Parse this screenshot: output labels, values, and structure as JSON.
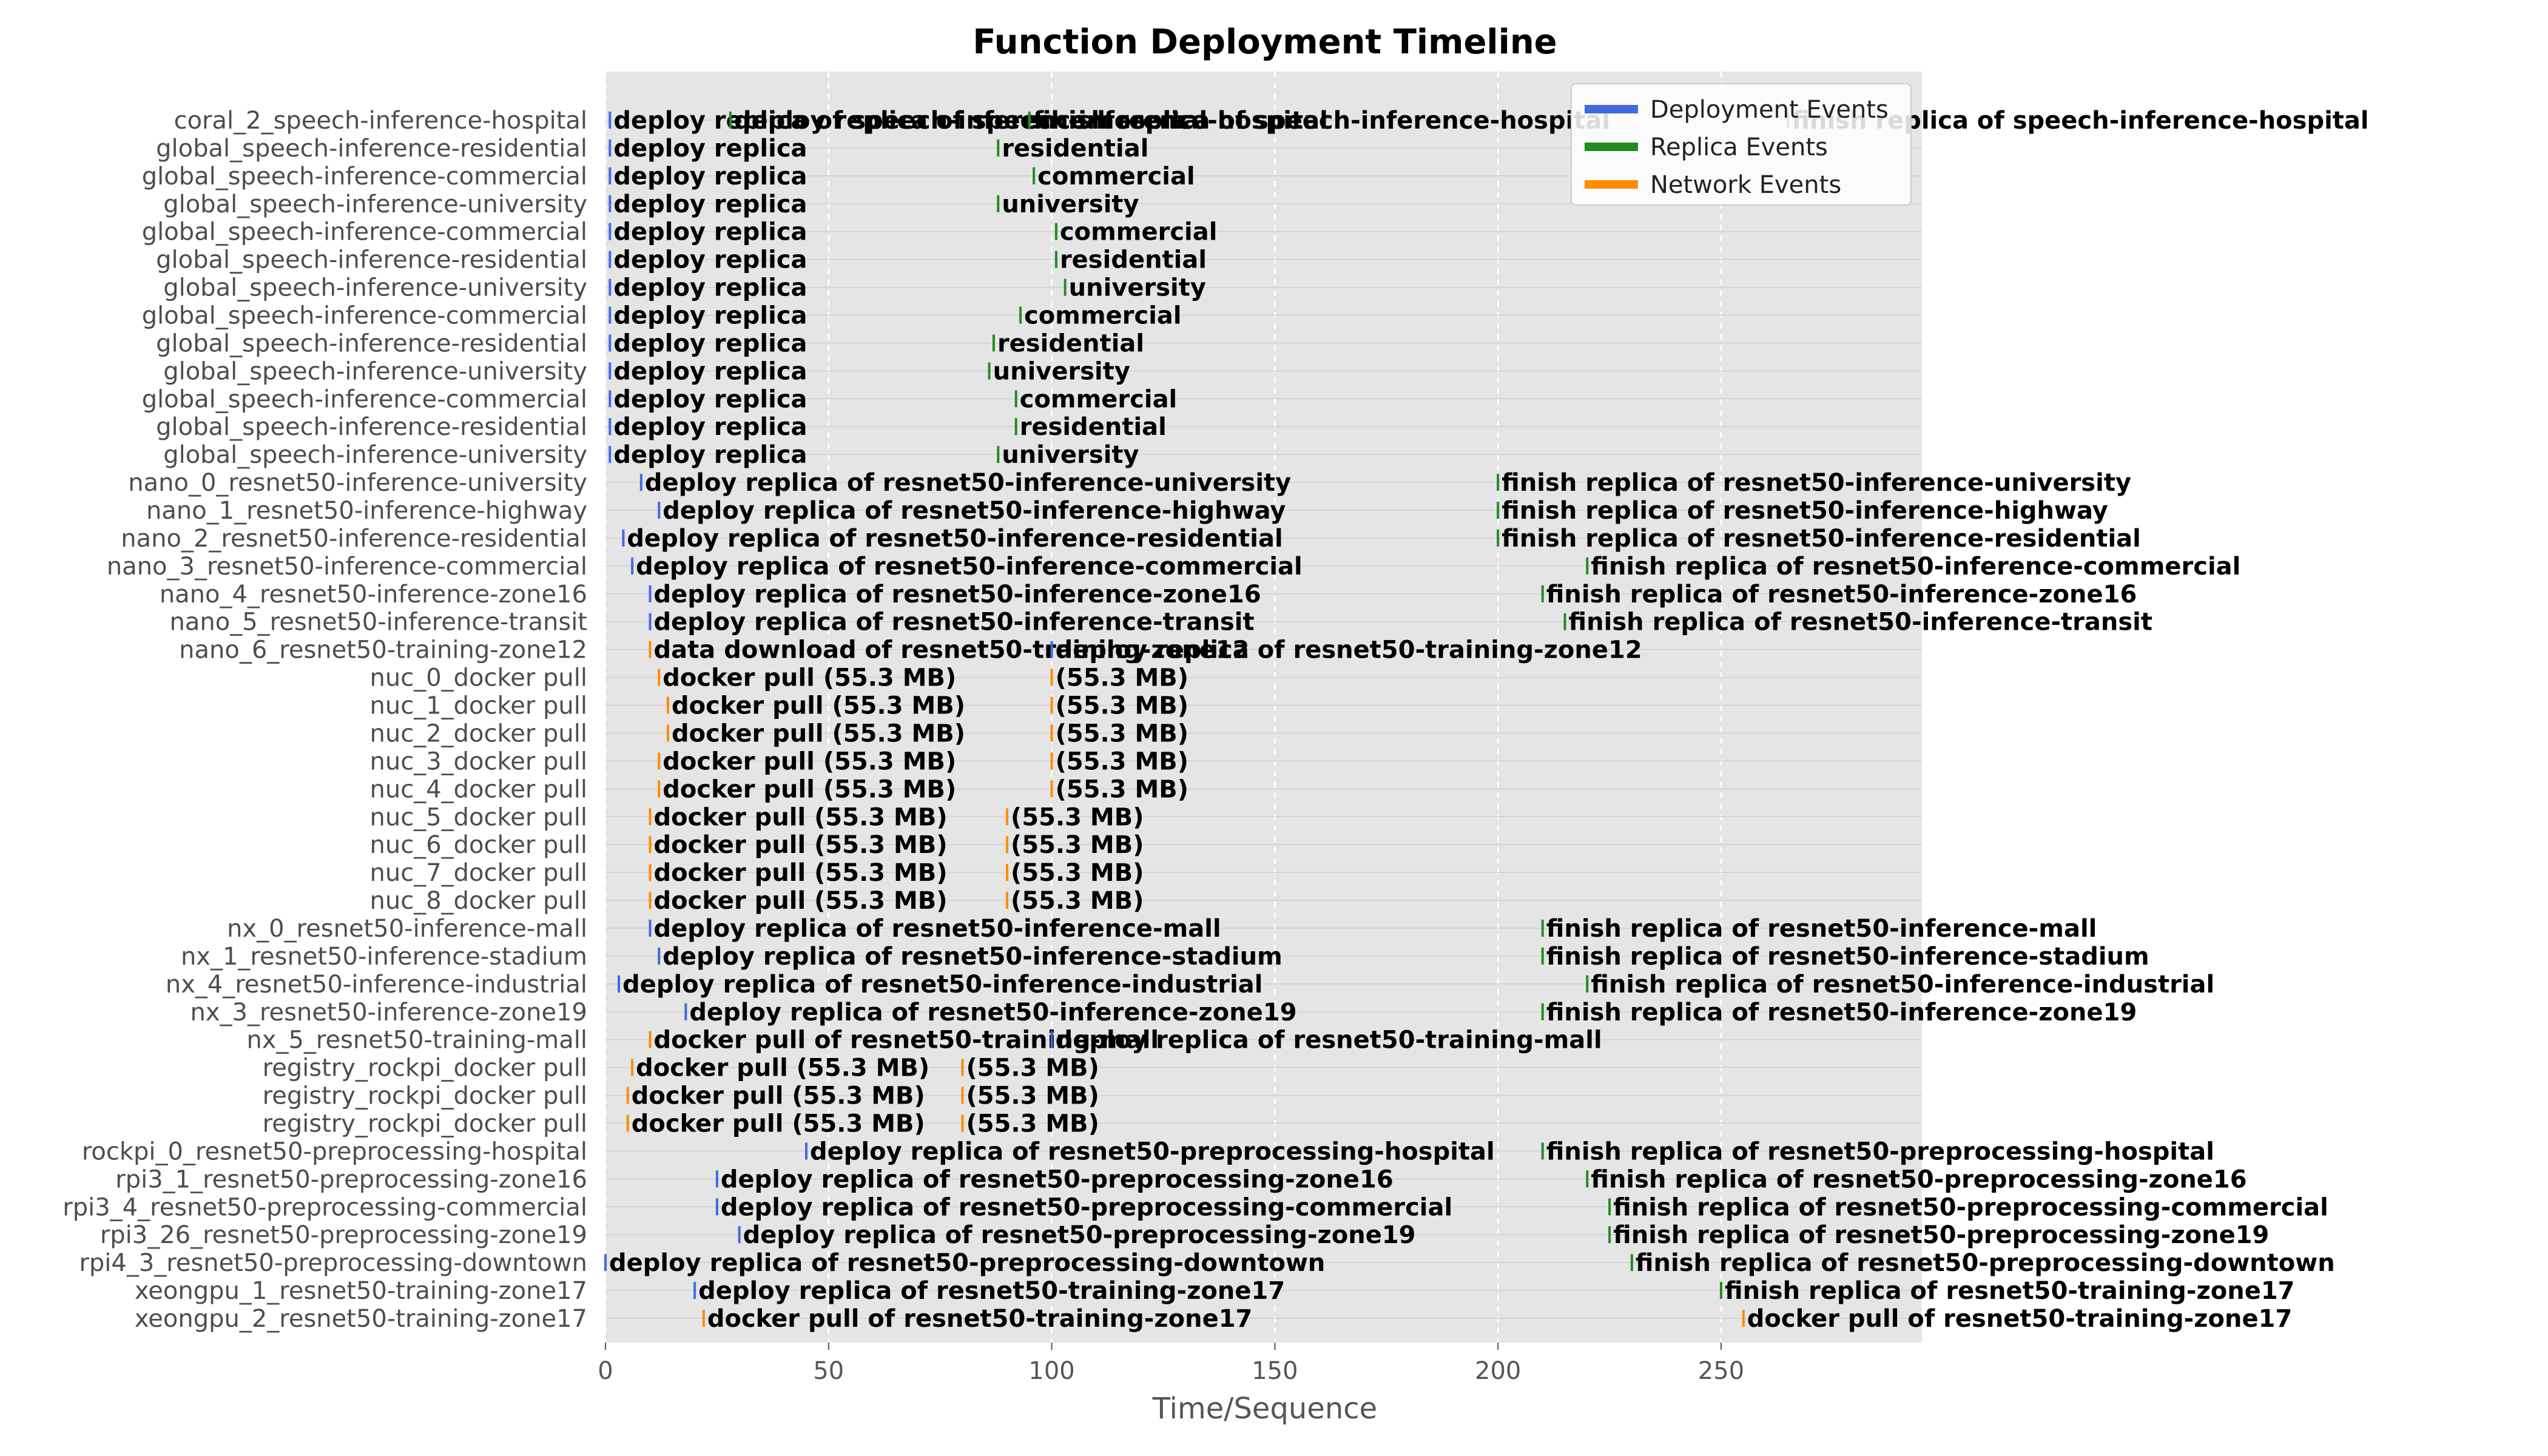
{
  "chart_data": {
    "type": "timeline",
    "title": "Function Deployment Timeline",
    "xlabel": "Time/Sequence",
    "ylabel": "",
    "xlim": [
      0,
      295
    ],
    "x_ticks": [
      0,
      50,
      100,
      150,
      200,
      250
    ],
    "x_tick_labels": [
      "0",
      "50",
      "100",
      "150",
      "200",
      "250"
    ],
    "grid": true,
    "legend_position": "top-right",
    "series": [
      {
        "name": "Deployment Events",
        "color": "#4169e1"
      },
      {
        "name": "Replica Events",
        "color": "#228b22"
      },
      {
        "name": "Network Events",
        "color": "#ff8c00"
      }
    ],
    "rows": [
      {
        "label": "coral_2_speech-inference-hospital",
        "events": [
          {
            "x": 1,
            "text": "deploy replica of speech-inference-hospital",
            "series": 0
          },
          {
            "x": 28,
            "text": "deploy replica of speech-inference-hospital",
            "series": 1
          },
          {
            "x": 95,
            "text": "finish replica of speech-inference-hospital",
            "series": 1
          },
          {
            "x": 265,
            "text": "finish replica of speech-inference-hospital",
            "series": 1
          }
        ]
      },
      {
        "label": "global_speech-inference-residential",
        "events": [
          {
            "x": 1,
            "text": "deploy replica",
            "series": 0
          },
          {
            "x": 88,
            "text": "residential",
            "series": 1
          }
        ]
      },
      {
        "label": "global_speech-inference-commercial",
        "events": [
          {
            "x": 1,
            "text": "deploy replica",
            "series": 0
          },
          {
            "x": 96,
            "text": "commercial",
            "series": 1
          }
        ]
      },
      {
        "label": "global_speech-inference-university",
        "events": [
          {
            "x": 1,
            "text": "deploy replica",
            "series": 0
          },
          {
            "x": 88,
            "text": "university",
            "series": 1
          }
        ]
      },
      {
        "label": "global_speech-inference-commercial",
        "events": [
          {
            "x": 1,
            "text": "deploy replica",
            "series": 0
          },
          {
            "x": 101,
            "text": "commercial",
            "series": 1
          }
        ]
      },
      {
        "label": "global_speech-inference-residential",
        "events": [
          {
            "x": 1,
            "text": "deploy replica",
            "series": 0
          },
          {
            "x": 101,
            "text": "residential",
            "series": 1
          }
        ]
      },
      {
        "label": "global_speech-inference-university",
        "events": [
          {
            "x": 1,
            "text": "deploy replica",
            "series": 0
          },
          {
            "x": 103,
            "text": "university",
            "series": 1
          }
        ]
      },
      {
        "label": "global_speech-inference-commercial",
        "events": [
          {
            "x": 1,
            "text": "deploy replica",
            "series": 0
          },
          {
            "x": 93,
            "text": "commercial",
            "series": 1
          }
        ]
      },
      {
        "label": "global_speech-inference-residential",
        "events": [
          {
            "x": 1,
            "text": "deploy replica",
            "series": 0
          },
          {
            "x": 87,
            "text": "residential",
            "series": 1
          }
        ]
      },
      {
        "label": "global_speech-inference-university",
        "events": [
          {
            "x": 1,
            "text": "deploy replica",
            "series": 0
          },
          {
            "x": 86,
            "text": "university",
            "series": 1
          }
        ]
      },
      {
        "label": "global_speech-inference-commercial",
        "events": [
          {
            "x": 1,
            "text": "deploy replica",
            "series": 0
          },
          {
            "x": 92,
            "text": "commercial",
            "series": 1
          }
        ]
      },
      {
        "label": "global_speech-inference-residential",
        "events": [
          {
            "x": 1,
            "text": "deploy replica",
            "series": 0
          },
          {
            "x": 92,
            "text": "residential",
            "series": 1
          }
        ]
      },
      {
        "label": "global_speech-inference-university",
        "events": [
          {
            "x": 1,
            "text": "deploy replica",
            "series": 0
          },
          {
            "x": 88,
            "text": "university",
            "series": 1
          }
        ]
      },
      {
        "label": "nano_0_resnet50-inference-university",
        "events": [
          {
            "x": 8,
            "text": "deploy replica of resnet50-inference-university",
            "series": 0
          },
          {
            "x": 200,
            "text": "finish replica of resnet50-inference-university",
            "series": 1
          }
        ]
      },
      {
        "label": "nano_1_resnet50-inference-highway",
        "events": [
          {
            "x": 12,
            "text": "deploy replica of resnet50-inference-highway",
            "series": 0
          },
          {
            "x": 200,
            "text": "finish replica of resnet50-inference-highway",
            "series": 1
          }
        ]
      },
      {
        "label": "nano_2_resnet50-inference-residential",
        "events": [
          {
            "x": 4,
            "text": "deploy replica of resnet50-inference-residential",
            "series": 0
          },
          {
            "x": 200,
            "text": "finish replica of resnet50-inference-residential",
            "series": 1
          }
        ]
      },
      {
        "label": "nano_3_resnet50-inference-commercial",
        "events": [
          {
            "x": 6,
            "text": "deploy replica of resnet50-inference-commercial",
            "series": 0
          },
          {
            "x": 220,
            "text": "finish replica of resnet50-inference-commercial",
            "series": 1
          }
        ]
      },
      {
        "label": "nano_4_resnet50-inference-zone16",
        "events": [
          {
            "x": 10,
            "text": "deploy replica of resnet50-inference-zone16",
            "series": 0
          },
          {
            "x": 210,
            "text": "finish replica of resnet50-inference-zone16",
            "series": 1
          }
        ]
      },
      {
        "label": "nano_5_resnet50-inference-transit",
        "events": [
          {
            "x": 10,
            "text": "deploy replica of resnet50-inference-transit",
            "series": 0
          },
          {
            "x": 215,
            "text": "finish replica of resnet50-inference-transit",
            "series": 1
          }
        ]
      },
      {
        "label": "nano_6_resnet50-training-zone12",
        "events": [
          {
            "x": 10,
            "text": "data download of resnet50-training-zone12",
            "series": 2
          },
          {
            "x": 100,
            "text": "deploy replica of resnet50-training-zone12",
            "series": 0
          }
        ]
      },
      {
        "label": "nuc_0_docker pull",
        "events": [
          {
            "x": 12,
            "text": "docker pull (55.3 MB)",
            "series": 2
          },
          {
            "x": 100,
            "text": "(55.3 MB)",
            "series": 2
          }
        ]
      },
      {
        "label": "nuc_1_docker pull",
        "events": [
          {
            "x": 14,
            "text": "docker pull (55.3 MB)",
            "series": 2
          },
          {
            "x": 100,
            "text": "(55.3 MB)",
            "series": 2
          }
        ]
      },
      {
        "label": "nuc_2_docker pull",
        "events": [
          {
            "x": 14,
            "text": "docker pull (55.3 MB)",
            "series": 2
          },
          {
            "x": 100,
            "text": "(55.3 MB)",
            "series": 2
          }
        ]
      },
      {
        "label": "nuc_3_docker pull",
        "events": [
          {
            "x": 12,
            "text": "docker pull (55.3 MB)",
            "series": 2
          },
          {
            "x": 100,
            "text": "(55.3 MB)",
            "series": 2
          }
        ]
      },
      {
        "label": "nuc_4_docker pull",
        "events": [
          {
            "x": 12,
            "text": "docker pull (55.3 MB)",
            "series": 2
          },
          {
            "x": 100,
            "text": "(55.3 MB)",
            "series": 2
          }
        ]
      },
      {
        "label": "nuc_5_docker pull",
        "events": [
          {
            "x": 10,
            "text": "docker pull (55.3 MB)",
            "series": 2
          },
          {
            "x": 90,
            "text": "(55.3 MB)",
            "series": 2
          }
        ]
      },
      {
        "label": "nuc_6_docker pull",
        "events": [
          {
            "x": 10,
            "text": "docker pull (55.3 MB)",
            "series": 2
          },
          {
            "x": 90,
            "text": "(55.3 MB)",
            "series": 2
          }
        ]
      },
      {
        "label": "nuc_7_docker pull",
        "events": [
          {
            "x": 10,
            "text": "docker pull (55.3 MB)",
            "series": 2
          },
          {
            "x": 90,
            "text": "(55.3 MB)",
            "series": 2
          }
        ]
      },
      {
        "label": "nuc_8_docker pull",
        "events": [
          {
            "x": 10,
            "text": "docker pull (55.3 MB)",
            "series": 2
          },
          {
            "x": 90,
            "text": "(55.3 MB)",
            "series": 2
          }
        ]
      },
      {
        "label": "nx_0_resnet50-inference-mall",
        "events": [
          {
            "x": 10,
            "text": "deploy replica of resnet50-inference-mall",
            "series": 0
          },
          {
            "x": 210,
            "text": "finish replica of resnet50-inference-mall",
            "series": 1
          }
        ]
      },
      {
        "label": "nx_1_resnet50-inference-stadium",
        "events": [
          {
            "x": 12,
            "text": "deploy replica of resnet50-inference-stadium",
            "series": 0
          },
          {
            "x": 210,
            "text": "finish replica of resnet50-inference-stadium",
            "series": 1
          }
        ]
      },
      {
        "label": "nx_4_resnet50-inference-industrial",
        "events": [
          {
            "x": 3,
            "text": "deploy replica of resnet50-inference-industrial",
            "series": 0
          },
          {
            "x": 220,
            "text": "finish replica of resnet50-inference-industrial",
            "series": 1
          }
        ]
      },
      {
        "label": "nx_3_resnet50-inference-zone19",
        "events": [
          {
            "x": 18,
            "text": "deploy replica of resnet50-inference-zone19",
            "series": 0
          },
          {
            "x": 210,
            "text": "finish replica of resnet50-inference-zone19",
            "series": 1
          }
        ]
      },
      {
        "label": "nx_5_resnet50-training-mall",
        "events": [
          {
            "x": 10,
            "text": "docker pull of resnet50-training-mall",
            "series": 2
          },
          {
            "x": 100,
            "text": "deploy replica of resnet50-training-mall",
            "series": 0
          }
        ]
      },
      {
        "label": "registry_rockpi_docker pull",
        "events": [
          {
            "x": 6,
            "text": "docker pull (55.3 MB)",
            "series": 2
          },
          {
            "x": 80,
            "text": "(55.3 MB)",
            "series": 2
          }
        ]
      },
      {
        "label": "registry_rockpi_docker pull",
        "events": [
          {
            "x": 5,
            "text": "docker pull (55.3 MB)",
            "series": 2
          },
          {
            "x": 80,
            "text": "(55.3 MB)",
            "series": 2
          }
        ]
      },
      {
        "label": "registry_rockpi_docker pull",
        "events": [
          {
            "x": 5,
            "text": "docker pull (55.3 MB)",
            "series": 2
          },
          {
            "x": 80,
            "text": "(55.3 MB)",
            "series": 2
          }
        ]
      },
      {
        "label": "rockpi_0_resnet50-preprocessing-hospital",
        "events": [
          {
            "x": 45,
            "text": "deploy replica of resnet50-preprocessing-hospital",
            "series": 0
          },
          {
            "x": 210,
            "text": "finish replica of resnet50-preprocessing-hospital",
            "series": 1
          }
        ]
      },
      {
        "label": "rpi3_1_resnet50-preprocessing-zone16",
        "events": [
          {
            "x": 25,
            "text": "deploy replica of resnet50-preprocessing-zone16",
            "series": 0
          },
          {
            "x": 220,
            "text": "finish replica of resnet50-preprocessing-zone16",
            "series": 1
          }
        ]
      },
      {
        "label": "rpi3_4_resnet50-preprocessing-commercial",
        "events": [
          {
            "x": 25,
            "text": "deploy replica of resnet50-preprocessing-commercial",
            "series": 0
          },
          {
            "x": 225,
            "text": "finish replica of resnet50-preprocessing-commercial",
            "series": 1
          }
        ]
      },
      {
        "label": "rpi3_26_resnet50-preprocessing-zone19",
        "events": [
          {
            "x": 30,
            "text": "deploy replica of resnet50-preprocessing-zone19",
            "series": 0
          },
          {
            "x": 225,
            "text": "finish replica of resnet50-preprocessing-zone19",
            "series": 1
          }
        ]
      },
      {
        "label": "rpi4_3_resnet50-preprocessing-downtown",
        "events": [
          {
            "x": 0,
            "text": "deploy replica of resnet50-preprocessing-downtown",
            "series": 0
          },
          {
            "x": 230,
            "text": "finish replica of resnet50-preprocessing-downtown",
            "series": 1
          }
        ]
      },
      {
        "label": "xeongpu_1_resnet50-training-zone17",
        "events": [
          {
            "x": 20,
            "text": "deploy replica of resnet50-training-zone17",
            "series": 0
          },
          {
            "x": 250,
            "text": "finish replica of resnet50-training-zone17",
            "series": 1
          }
        ]
      },
      {
        "label": "xeongpu_2_resnet50-training-zone17",
        "events": [
          {
            "x": 22,
            "text": "docker pull of resnet50-training-zone17",
            "series": 2
          },
          {
            "x": 255,
            "text": "docker pull of resnet50-training-zone17",
            "series": 2
          }
        ]
      }
    ]
  }
}
